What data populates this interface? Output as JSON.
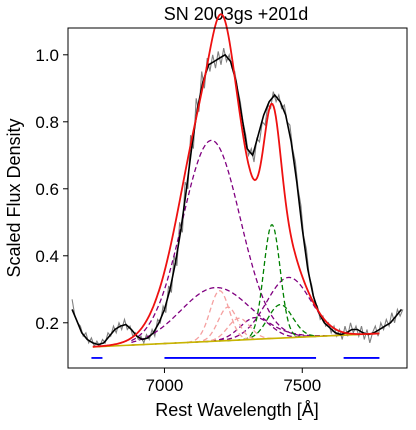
{
  "chart_data": {
    "type": "line",
    "title": "SN 2003gs  +201d",
    "xlabel": "Rest Wavelength [Å]",
    "ylabel": "Scaled Flux Density",
    "xlim": [
      6650,
      7880
    ],
    "ylim": [
      0.065,
      1.08
    ],
    "x_ticks": [
      7000,
      7500
    ],
    "x_tick_labels": [
      "7000",
      "7500"
    ],
    "y_ticks": [
      0.2,
      0.4,
      0.6,
      0.8,
      1.0
    ],
    "y_tick_labels": [
      "0.2",
      "0.4",
      "0.6",
      "0.8",
      "1.0"
    ],
    "grid": false,
    "legend": "none",
    "colors": {
      "observed_raw": "#808080",
      "observed_smoothed": "#000000",
      "total_fit": "#ee1111",
      "continuum": "#c8b400",
      "broad_components": "#800080",
      "narrow_components": "#008000",
      "faint_components": "#f5a0a0",
      "continuum_windows": "#0000ff"
    },
    "continuum": {
      "x": [
        6740,
        7780
      ],
      "y": [
        0.128,
        0.168
      ]
    },
    "gaussians": [
      {
        "group": "broad_components",
        "center": 7170,
        "sigma": 105,
        "amplitude": 0.6
      },
      {
        "group": "broad_components",
        "center": 7185,
        "sigma": 125,
        "amplitude": 0.16
      },
      {
        "group": "broad_components",
        "center": 7450,
        "sigma": 80,
        "amplitude": 0.18
      },
      {
        "group": "broad_components",
        "center": 7330,
        "sigma": 55,
        "amplitude": 0.065
      },
      {
        "group": "narrow_components",
        "center": 7390,
        "sigma": 30,
        "amplitude": 0.34
      },
      {
        "group": "narrow_components",
        "center": 7420,
        "sigma": 45,
        "amplitude": 0.1
      },
      {
        "group": "faint_components",
        "center": 7200,
        "sigma": 35,
        "amplitude": 0.15
      },
      {
        "group": "faint_components",
        "center": 7230,
        "sigma": 35,
        "amplitude": 0.1
      },
      {
        "group": "faint_components",
        "center": 7270,
        "sigma": 40,
        "amplitude": 0.065
      }
    ],
    "observed_smoothed": {
      "x": [
        6665,
        6680,
        6700,
        6720,
        6740,
        6760,
        6780,
        6800,
        6820,
        6840,
        6860,
        6880,
        6900,
        6920,
        6940,
        6960,
        6980,
        7000,
        7020,
        7040,
        7060,
        7080,
        7100,
        7120,
        7140,
        7160,
        7180,
        7200,
        7220,
        7240,
        7260,
        7280,
        7300,
        7320,
        7340,
        7360,
        7380,
        7400,
        7420,
        7440,
        7460,
        7480,
        7500,
        7520,
        7540,
        7560,
        7580,
        7600,
        7620,
        7640,
        7660,
        7680,
        7700,
        7720,
        7740,
        7760,
        7780,
        7800,
        7820,
        7840,
        7860
      ],
      "y": [
        0.24,
        0.21,
        0.17,
        0.15,
        0.14,
        0.135,
        0.14,
        0.16,
        0.18,
        0.19,
        0.195,
        0.18,
        0.16,
        0.15,
        0.155,
        0.17,
        0.2,
        0.24,
        0.3,
        0.38,
        0.48,
        0.6,
        0.73,
        0.84,
        0.92,
        0.97,
        0.98,
        0.99,
        1.0,
        0.98,
        0.92,
        0.82,
        0.72,
        0.7,
        0.76,
        0.82,
        0.86,
        0.88,
        0.86,
        0.82,
        0.74,
        0.62,
        0.48,
        0.36,
        0.28,
        0.23,
        0.2,
        0.185,
        0.17,
        0.165,
        0.17,
        0.18,
        0.18,
        0.17,
        0.165,
        0.17,
        0.18,
        0.19,
        0.2,
        0.22,
        0.24
      ]
    },
    "observed_raw": {
      "x": [
        6665,
        6675,
        6685,
        6695,
        6705,
        6715,
        6725,
        6735,
        6745,
        6755,
        6765,
        6775,
        6785,
        6795,
        6805,
        6815,
        6825,
        6835,
        6845,
        6855,
        6865,
        6875,
        6885,
        6895,
        6905,
        6915,
        6925,
        6935,
        6945,
        6955,
        6965,
        6975,
        6985,
        6995,
        7005,
        7015,
        7025,
        7035,
        7045,
        7055,
        7065,
        7075,
        7085,
        7095,
        7105,
        7115,
        7125,
        7135,
        7145,
        7155,
        7165,
        7175,
        7185,
        7195,
        7205,
        7215,
        7225,
        7235,
        7245,
        7255,
        7265,
        7275,
        7285,
        7295,
        7305,
        7315,
        7325,
        7335,
        7345,
        7355,
        7365,
        7375,
        7385,
        7395,
        7405,
        7415,
        7425,
        7435,
        7445,
        7455,
        7465,
        7475,
        7485,
        7495,
        7505,
        7515,
        7525,
        7535,
        7545,
        7555,
        7565,
        7575,
        7585,
        7595,
        7605,
        7615,
        7625,
        7635,
        7645,
        7655,
        7665,
        7675,
        7685,
        7695,
        7705,
        7715,
        7725,
        7735,
        7745,
        7755,
        7765,
        7775,
        7785,
        7795,
        7805,
        7815,
        7825,
        7835,
        7845,
        7855,
        7865
      ],
      "y": [
        0.27,
        0.22,
        0.2,
        0.19,
        0.16,
        0.17,
        0.14,
        0.155,
        0.13,
        0.145,
        0.13,
        0.15,
        0.14,
        0.17,
        0.16,
        0.19,
        0.17,
        0.2,
        0.18,
        0.21,
        0.18,
        0.19,
        0.16,
        0.17,
        0.15,
        0.16,
        0.14,
        0.165,
        0.15,
        0.18,
        0.16,
        0.21,
        0.2,
        0.25,
        0.23,
        0.31,
        0.29,
        0.4,
        0.37,
        0.5,
        0.47,
        0.62,
        0.6,
        0.76,
        0.72,
        0.87,
        0.83,
        0.95,
        0.9,
        0.99,
        0.95,
        1.0,
        0.96,
        1.01,
        0.97,
        1.02,
        0.98,
        1.0,
        0.96,
        0.95,
        0.9,
        0.86,
        0.8,
        0.76,
        0.7,
        0.72,
        0.68,
        0.75,
        0.74,
        0.8,
        0.79,
        0.85,
        0.84,
        0.89,
        0.86,
        0.88,
        0.84,
        0.85,
        0.8,
        0.79,
        0.72,
        0.68,
        0.6,
        0.55,
        0.46,
        0.42,
        0.34,
        0.31,
        0.26,
        0.25,
        0.21,
        0.22,
        0.19,
        0.2,
        0.17,
        0.19,
        0.16,
        0.18,
        0.15,
        0.19,
        0.16,
        0.2,
        0.17,
        0.19,
        0.16,
        0.19,
        0.15,
        0.18,
        0.14,
        0.17,
        0.19,
        0.16,
        0.2,
        0.18,
        0.21,
        0.19,
        0.23,
        0.2,
        0.24,
        0.22,
        0.24
      ]
    },
    "continuum_windows": [
      [
        6735,
        6775
      ],
      [
        7000,
        7550
      ],
      [
        7650,
        7780
      ]
    ],
    "continuum_windows_y": 0.095
  }
}
